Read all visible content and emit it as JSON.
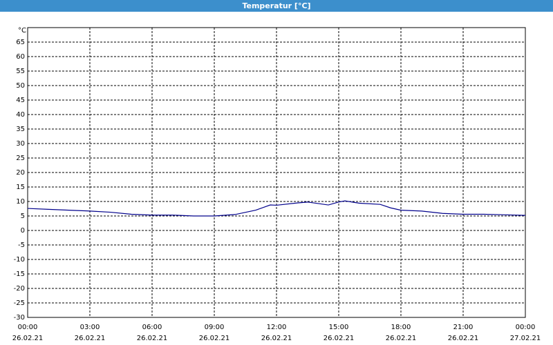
{
  "chart_data": {
    "type": "line",
    "title": "Temperatur [°C]",
    "y_label": "°C",
    "x": [
      0,
      1,
      2,
      3,
      4,
      5,
      6,
      7,
      8,
      9,
      10,
      11,
      11.7,
      12,
      13,
      13.5,
      14,
      14.5,
      15,
      15.3,
      16,
      17,
      17.5,
      18,
      19,
      20,
      21,
      22,
      23,
      24
    ],
    "series": [
      {
        "name": "Temperatur",
        "color": "#00008b",
        "values": [
          7.6,
          7.3,
          7.0,
          6.7,
          6.3,
          5.6,
          5.3,
          5.3,
          5.0,
          5.0,
          5.5,
          7.0,
          8.8,
          8.7,
          9.5,
          9.8,
          9.3,
          8.8,
          9.8,
          10.2,
          9.4,
          9.0,
          7.8,
          7.0,
          6.7,
          5.9,
          5.6,
          5.6,
          5.4,
          5.2
        ]
      }
    ],
    "xlim": [
      0,
      24
    ],
    "xticks": [
      {
        "value": 0,
        "label": "00:00"
      },
      {
        "value": 3,
        "label": "03:00"
      },
      {
        "value": 6,
        "label": "06:00"
      },
      {
        "value": 9,
        "label": "09:00"
      },
      {
        "value": 12,
        "label": "12:00"
      },
      {
        "value": 15,
        "label": "15:00"
      },
      {
        "value": 18,
        "label": "18:00"
      },
      {
        "value": 21,
        "label": "21:00"
      },
      {
        "value": 24,
        "label": "00:00"
      }
    ],
    "xtick_dates": [
      "26.02.21",
      "26.02.21",
      "26.02.21",
      "26.02.21",
      "26.02.21",
      "26.02.21",
      "26.02.21",
      "26.02.21",
      "27.02.21"
    ],
    "ylim": [
      -30,
      70
    ],
    "yticks": [
      -30,
      -25,
      -20,
      -15,
      -10,
      -5,
      0,
      5,
      10,
      15,
      20,
      25,
      30,
      35,
      40,
      45,
      50,
      55,
      60,
      65
    ],
    "grid": true
  }
}
